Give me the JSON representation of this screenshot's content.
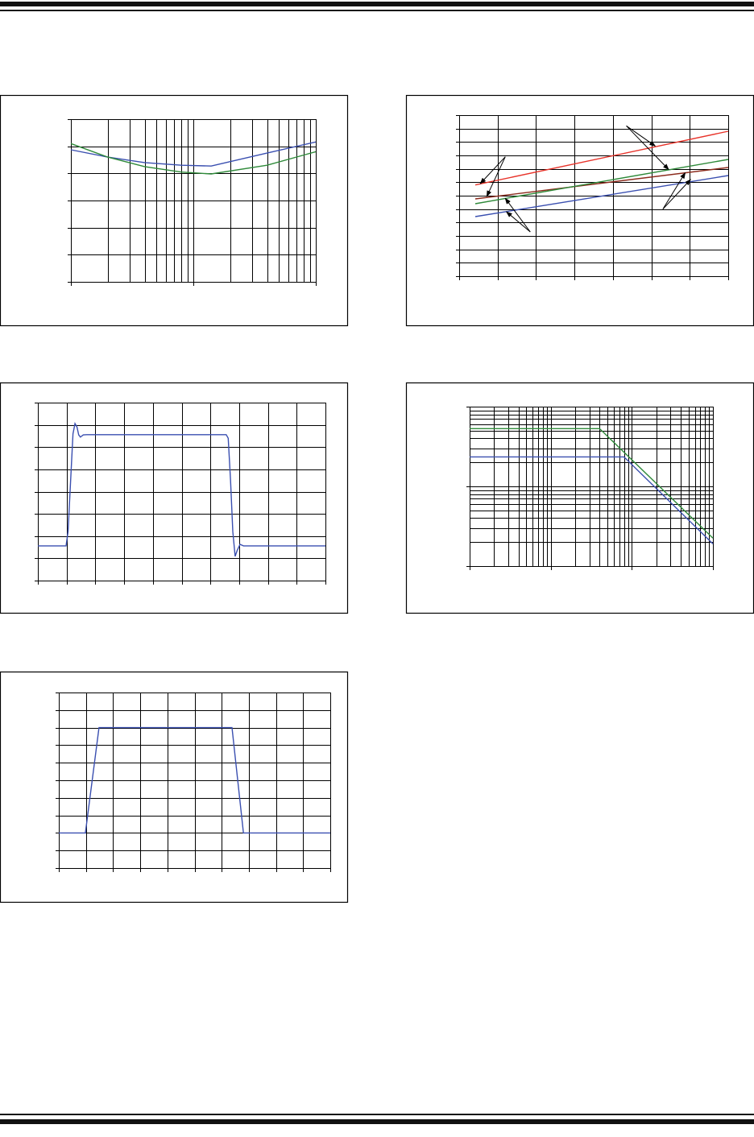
{
  "colors": {
    "blue": "#3a4fb0",
    "green": "#2f8a3a",
    "red": "#e8332a",
    "brown": "#8b2a1c",
    "grid": "#000000"
  },
  "chart_data": [
    {
      "type": "line",
      "xscale": "log",
      "xlim": [
        1,
        100
      ],
      "yscale": "linear",
      "ylim": [
        0,
        6
      ],
      "ydiv": 6,
      "grid": true,
      "series": [
        {
          "color": "blue",
          "points": [
            [
              1,
              4.87
            ],
            [
              2,
              4.6
            ],
            [
              4,
              4.4
            ],
            [
              8,
              4.3
            ],
            [
              14,
              4.27
            ],
            [
              40,
              4.75
            ],
            [
              100,
              5.16
            ]
          ]
        },
        {
          "color": "green",
          "points": [
            [
              1,
              5.1
            ],
            [
              2,
              4.6
            ],
            [
              4,
              4.25
            ],
            [
              8,
              4.05
            ],
            [
              14,
              3.98
            ],
            [
              40,
              4.3
            ],
            [
              100,
              4.8
            ]
          ]
        }
      ]
    },
    {
      "type": "line",
      "xscale": "linear",
      "xlim": [
        0,
        7
      ],
      "xdiv": 7,
      "yscale": "linear",
      "ylim": [
        0,
        12
      ],
      "ydiv": 12,
      "grid": true,
      "series": [
        {
          "color": "red",
          "points": [
            [
              0.42,
              6.8
            ],
            [
              7,
              10.8
            ]
          ]
        },
        {
          "color": "brown",
          "points": [
            [
              0.42,
              5.76
            ],
            [
              7,
              8.1
            ]
          ]
        },
        {
          "color": "green",
          "points": [
            [
              0.42,
              5.4
            ],
            [
              7,
              8.7
            ]
          ]
        },
        {
          "color": "blue",
          "points": [
            [
              0.42,
              4.44
            ],
            [
              7,
              7.5
            ]
          ]
        }
      ],
      "annotations": [
        {
          "from": [
            1.2,
            8.9
          ],
          "to": [
            [
              0.55,
              6.9
            ],
            [
              0.72,
              5.95
            ]
          ]
        },
        {
          "from": [
            1.85,
            3.3
          ],
          "to": [
            [
              1.23,
              4.8
            ],
            [
              1.2,
              5.8
            ]
          ]
        },
        {
          "from": [
            4.35,
            11.2
          ],
          "to": [
            [
              5.1,
              9.7
            ],
            [
              5.45,
              7.95
            ]
          ]
        },
        {
          "from": [
            5.3,
            5.0
          ],
          "to": [
            [
              5.88,
              7.7
            ],
            [
              6.02,
              7.2
            ]
          ]
        }
      ]
    },
    {
      "type": "line",
      "xscale": "linear",
      "xlim": [
        0,
        10
      ],
      "xdiv": 10,
      "yscale": "linear",
      "ylim": [
        0,
        8
      ],
      "ydiv": 8,
      "grid": true,
      "series": [
        {
          "color": "blue",
          "points": [
            [
              0,
              1.56
            ],
            [
              0.98,
              1.56
            ],
            [
              1.05,
              2.2
            ],
            [
              1.15,
              4.8
            ],
            [
              1.22,
              6.6
            ],
            [
              1.29,
              7.06
            ],
            [
              1.36,
              6.9
            ],
            [
              1.42,
              6.55
            ],
            [
              1.48,
              6.45
            ],
            [
              1.58,
              6.55
            ],
            [
              1.7,
              6.56
            ],
            [
              6.55,
              6.56
            ],
            [
              6.62,
              6.4
            ],
            [
              6.7,
              4.5
            ],
            [
              6.78,
              2.2
            ],
            [
              6.86,
              1.09
            ],
            [
              6.93,
              1.35
            ],
            [
              7.03,
              1.63
            ],
            [
              7.15,
              1.56
            ],
            [
              10,
              1.56
            ]
          ]
        }
      ]
    },
    {
      "type": "line",
      "xscale": "log",
      "xlim": [
        1,
        1000
      ],
      "yscale": "log",
      "ylim": [
        1,
        100
      ],
      "grid": true,
      "series": [
        {
          "color": "green",
          "points": [
            [
              1,
              53
            ],
            [
              40,
              53
            ],
            [
              1000,
              2.24
            ]
          ]
        },
        {
          "color": "blue",
          "points": [
            [
              1,
              23.4
            ],
            [
              80,
              23.4
            ],
            [
              1000,
              1.9
            ]
          ]
        }
      ]
    },
    {
      "type": "line",
      "xscale": "linear",
      "xlim": [
        0,
        10
      ],
      "xdiv": 10,
      "yscale": "linear",
      "ylim": [
        0,
        10
      ],
      "ydiv": 10,
      "grid": true,
      "series": [
        {
          "color": "blue",
          "points": [
            [
              0,
              2
            ],
            [
              0.98,
              2
            ],
            [
              1.48,
              8
            ],
            [
              6.38,
              8
            ],
            [
              6.8,
              2
            ],
            [
              10,
              2
            ]
          ]
        }
      ]
    }
  ]
}
